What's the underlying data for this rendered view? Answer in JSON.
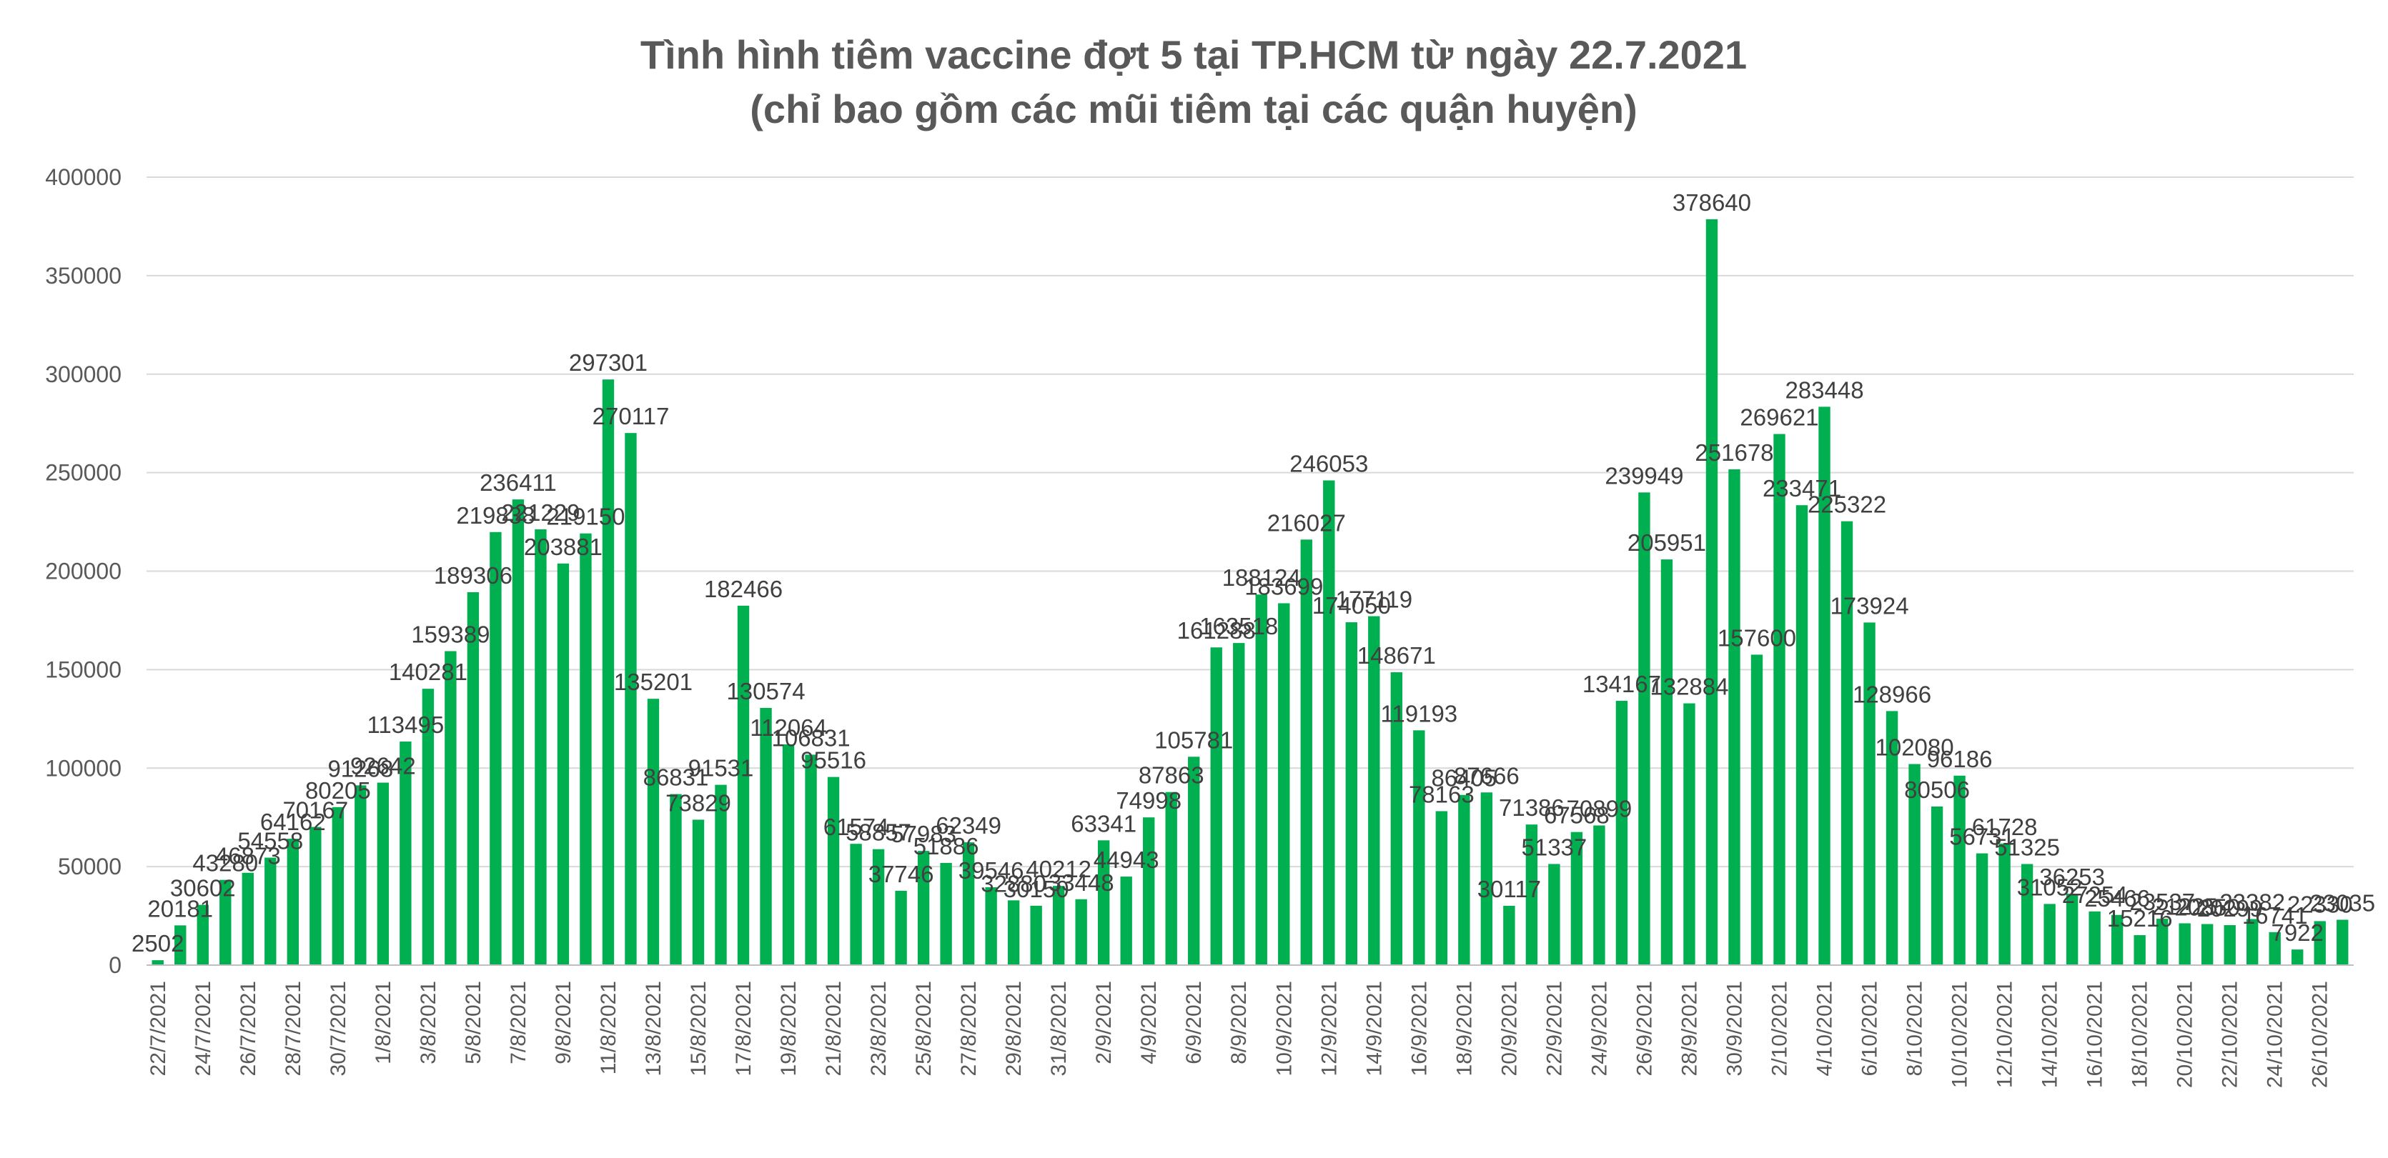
{
  "chart_data": {
    "type": "bar",
    "title": "Tình hình tiêm vaccine đợt 5 tại TP.HCM từ ngày 22.7.2021",
    "subtitle": "(chỉ bao gồm các mũi tiêm tại các quận huyện)",
    "xlabel": "",
    "ylabel": "",
    "ylim": [
      0,
      400000
    ],
    "yticks": [
      "0",
      "50000",
      "100000",
      "150000",
      "200000",
      "250000",
      "300000",
      "350000",
      "400000"
    ],
    "grid": true,
    "legend": "none",
    "bar_color": "#00b050",
    "categories": [
      "22/7/2021",
      "23/7/2021",
      "24/7/2021",
      "25/7/2021",
      "26/7/2021",
      "27/7/2021",
      "28/7/2021",
      "29/7/2021",
      "30/7/2021",
      "31/7/2021",
      "1/8/2021",
      "2/8/2021",
      "3/8/2021",
      "4/8/2021",
      "5/8/2021",
      "6/8/2021",
      "7/8/2021",
      "8/8/2021",
      "9/8/2021",
      "10/8/2021",
      "11/8/2021",
      "12/8/2021",
      "13/8/2021",
      "14/8/2021",
      "15/8/2021",
      "16/8/2021",
      "17/8/2021",
      "18/8/2021",
      "19/8/2021",
      "20/8/2021",
      "21/8/2021",
      "22/8/2021",
      "23/8/2021",
      "24/8/2021",
      "25/8/2021",
      "26/8/2021",
      "27/8/2021",
      "28/8/2021",
      "29/8/2021",
      "30/8/2021",
      "31/8/2021",
      "1/9/2021",
      "2/9/2021",
      "3/9/2021",
      "4/9/2021",
      "5/9/2021",
      "6/9/2021",
      "7/9/2021",
      "8/9/2021",
      "9/9/2021",
      "10/9/2021",
      "11/9/2021",
      "12/9/2021",
      "13/9/2021",
      "14/9/2021",
      "15/9/2021",
      "16/9/2021",
      "17/9/2021",
      "18/9/2021",
      "19/9/2021",
      "20/9/2021",
      "21/9/2021",
      "22/9/2021",
      "23/9/2021",
      "24/9/2021",
      "25/9/2021",
      "26/9/2021",
      "27/9/2021",
      "28/9/2021",
      "29/9/2021",
      "30/9/2021",
      "1/10/2021",
      "2/10/2021",
      "3/10/2021",
      "4/10/2021",
      "5/10/2021",
      "6/10/2021",
      "7/10/2021",
      "8/10/2021",
      "9/10/2021",
      "10/10/2021",
      "11/10/2021",
      "12/10/2021",
      "13/10/2021",
      "14/10/2021",
      "15/10/2021",
      "16/10/2021",
      "17/10/2021",
      "18/10/2021",
      "19/10/2021",
      "20/10/2021",
      "21/10/2021",
      "22/10/2021",
      "23/10/2021",
      "24/10/2021",
      "25/10/2021",
      "26/10/2021",
      "27/10/2021"
    ],
    "x_tick_labels": [
      "22/7/2021",
      "24/7/2021",
      "26/7/2021",
      "28/7/2021",
      "30/7/2021",
      "1/8/2021",
      "3/8/2021",
      "5/8/2021",
      "7/8/2021",
      "9/8/2021",
      "11/8/2021",
      "13/8/2021",
      "15/8/2021",
      "17/8/2021",
      "19/8/2021",
      "21/8/2021",
      "23/8/2021",
      "25/8/2021",
      "27/8/2021",
      "29/8/2021",
      "31/8/2021",
      "2/9/2021",
      "4/9/2021",
      "6/9/2021",
      "8/9/2021",
      "10/9/2021",
      "12/9/2021",
      "14/9/2021",
      "16/9/2021",
      "18/9/2021",
      "20/9/2021",
      "22/9/2021",
      "24/9/2021",
      "26/9/2021",
      "28/9/2021",
      "30/9/2021",
      "2/10/2021",
      "4/10/2021",
      "6/10/2021",
      "8/10/2021",
      "10/10/2021",
      "12/10/2021",
      "14/10/2021",
      "16/10/2021",
      "18/10/2021",
      "20/10/2021",
      "22/10/2021",
      "24/10/2021",
      "26/10/2021"
    ],
    "values": [
      2502,
      20181,
      30602,
      43280,
      46873,
      54558,
      64162,
      70167,
      80205,
      91268,
      92642,
      113495,
      140281,
      159389,
      189306,
      219838,
      236411,
      221229,
      203881,
      219150,
      297301,
      270117,
      135201,
      86831,
      73829,
      91531,
      182466,
      130574,
      112064,
      106831,
      95516,
      61574,
      58857,
      37746,
      57983,
      51886,
      62349,
      39546,
      32880,
      30150,
      40212,
      33448,
      63341,
      44943,
      74998,
      87863,
      105781,
      161288,
      163518,
      188124,
      183699,
      216027,
      246053,
      174050,
      177119,
      148671,
      119193,
      78163,
      86405,
      87666,
      30117,
      71386,
      51337,
      67568,
      70899,
      134167,
      239949,
      205951,
      132884,
      378640,
      251678,
      157600,
      269621,
      233471,
      283448,
      225322,
      173924,
      128966,
      102080,
      80506,
      96186,
      56731,
      61728,
      51325,
      31052,
      36253,
      27254,
      25466,
      15216,
      23537,
      21225,
      20850,
      20299,
      23382,
      16741,
      7922,
      22330,
      23035
    ]
  }
}
